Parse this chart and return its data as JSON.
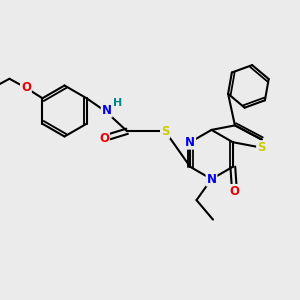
{
  "bg_color": "#ebebeb",
  "atom_colors": {
    "C": "#000000",
    "N": "#0000ee",
    "O": "#ee0000",
    "S": "#cccc00",
    "H": "#008888"
  },
  "bond_color": "#000000",
  "bond_width": 1.5,
  "figsize": [
    3.0,
    3.0
  ],
  "dpi": 100
}
